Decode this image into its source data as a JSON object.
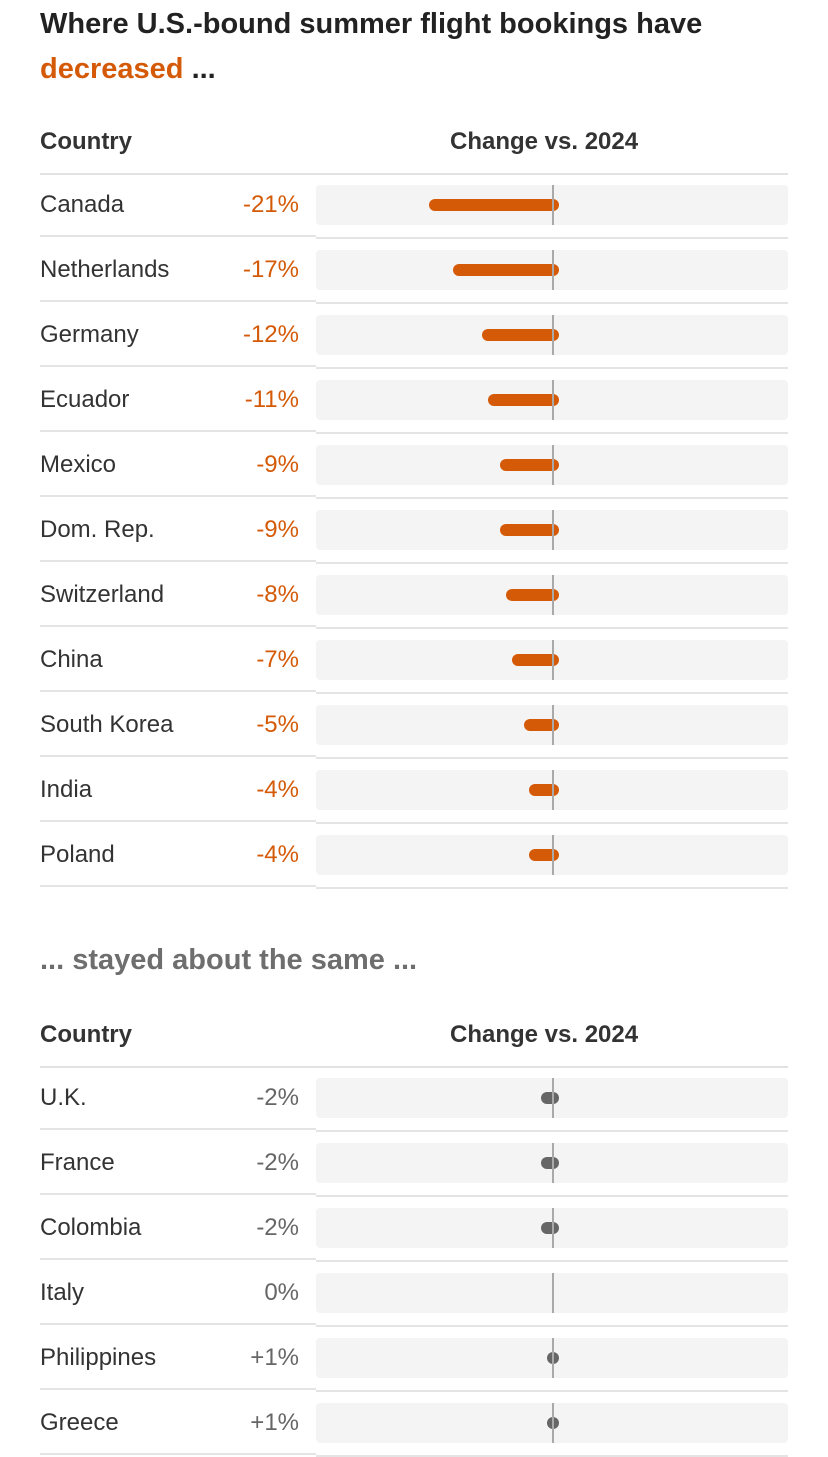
{
  "title_part1": "Where U.S.-bound summer flight bookings have",
  "title_highlight": "decreased",
  "title_suffix": "...",
  "section2_title": "... stayed about the same ...",
  "colors": {
    "decrease": "#d45a08",
    "neutral": "#666666",
    "neutral_text": "#666666",
    "zero_line": "#a9a9a9",
    "track": "#f4f4f4"
  },
  "chart_data": [
    {
      "type": "bar",
      "title": "Where U.S.-bound summer flight bookings have decreased ...",
      "header_country": "Country",
      "header_change": "Change vs. 2024",
      "categories": [
        "Canada",
        "Netherlands",
        "Germany",
        "Ecuador",
        "Mexico",
        "Dom. Rep.",
        "Switzerland",
        "China",
        "South Korea",
        "India",
        "Poland"
      ],
      "values": [
        -21,
        -17,
        -12,
        -11,
        -9,
        -9,
        -8,
        -7,
        -5,
        -4,
        -4
      ],
      "labels": [
        "-21%",
        "-17%",
        "-12%",
        "-11%",
        "-9%",
        "-9%",
        "-8%",
        "-7%",
        "-5%",
        "-4%",
        "-4%"
      ],
      "xlim": [
        -40,
        40
      ],
      "color": "#d45a08"
    },
    {
      "type": "bar",
      "title": "... stayed about the same ...",
      "header_country": "Country",
      "header_change": "Change vs. 2024",
      "categories": [
        "U.K.",
        "France",
        "Colombia",
        "Italy",
        "Philippines",
        "Greece"
      ],
      "values": [
        -2,
        -2,
        -2,
        0,
        1,
        1
      ],
      "labels": [
        "-2%",
        "-2%",
        "-2%",
        "0%",
        "+1%",
        "+1%"
      ],
      "xlim": [
        -40,
        40
      ],
      "color": "#666666"
    }
  ]
}
